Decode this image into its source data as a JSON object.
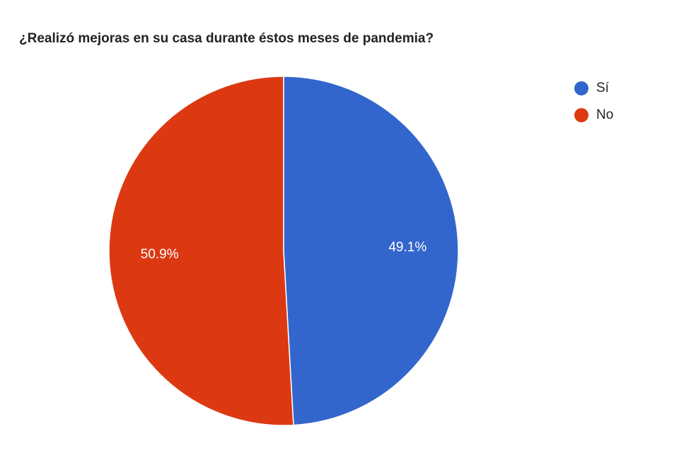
{
  "chart_data": {
    "type": "pie",
    "title": "¿Realizó mejoras en su casa durante éstos meses de pandemia?",
    "slices": [
      {
        "label": "Sí",
        "value": 49.1,
        "value_label": "49.1%",
        "color": "#3366cc"
      },
      {
        "label": "No",
        "value": 50.9,
        "value_label": "50.9%",
        "color": "#dc3912"
      }
    ],
    "legend_position": "right"
  }
}
